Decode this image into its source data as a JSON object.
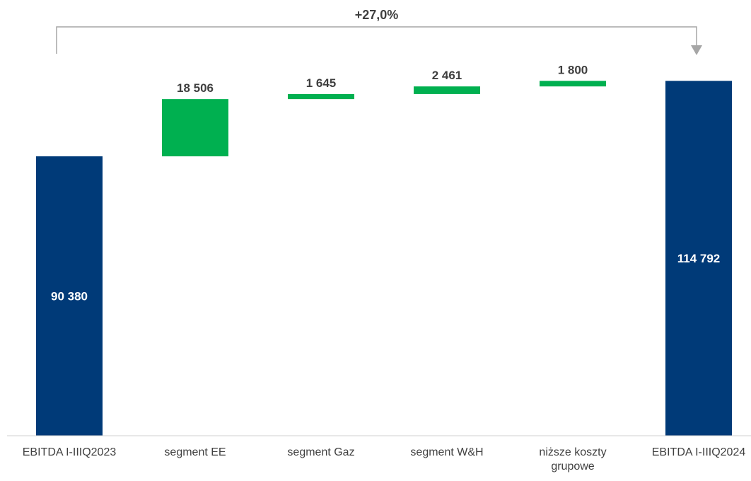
{
  "chart_data": {
    "type": "waterfall",
    "categories": [
      [
        "EBITDA I-IIIQ2023"
      ],
      [
        "segment EE"
      ],
      [
        "segment Gaz"
      ],
      [
        "segment W&H"
      ],
      [
        "niższe koszty",
        "grupowe"
      ],
      [
        "EBITDA I-IIIQ2024"
      ]
    ],
    "values": [
      90380,
      18506,
      1645,
      2461,
      1800,
      114792
    ],
    "kinds": [
      "total",
      "increase",
      "increase",
      "increase",
      "increase",
      "total"
    ],
    "value_labels": [
      "90 380",
      "18 506",
      "1 645",
      "2 461",
      "1 800",
      "114 792"
    ],
    "bracket_label": "+27,0%",
    "ylim": [
      0,
      130000
    ],
    "colors": {
      "total": "#003a78",
      "increase": "#00b050",
      "axis": "#d0d0d0",
      "bracket": "#a6a6a6"
    },
    "grid": false,
    "legend": "none"
  }
}
